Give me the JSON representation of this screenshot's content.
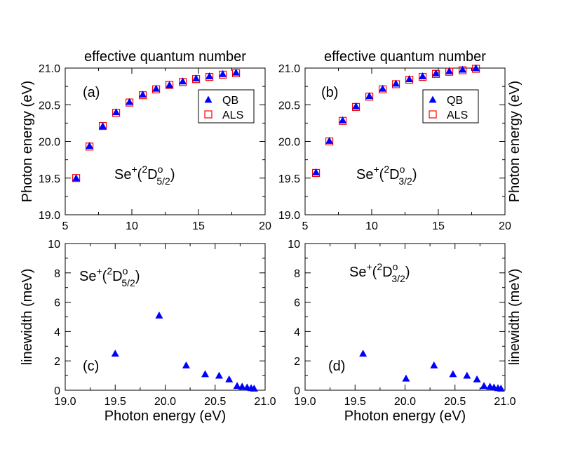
{
  "colors": {
    "qb": "#0000ff",
    "als": "#ff0000",
    "axis": "#000000"
  },
  "chart_data": [
    {
      "type": "scatter",
      "panel_label": "(a)",
      "title": "effective quantum number",
      "xlabel": "",
      "ylabel": "Photon  energy (eV)",
      "ylabel_side": "left",
      "xlim": [
        5,
        20
      ],
      "ylim": [
        19.0,
        21.0
      ],
      "xticks": [
        5,
        10,
        15,
        20
      ],
      "xminor": [
        7.5,
        12.5,
        17.5
      ],
      "yticks": [
        19.0,
        19.5,
        20.0,
        20.5,
        21.0
      ],
      "yminor": [
        19.25,
        19.75,
        20.25,
        20.75
      ],
      "species": {
        "base": "Se",
        "sup": "+",
        "open": "(",
        "mult": "2",
        "term": "D",
        "parity": "o",
        "j": "5/2",
        "close": ")"
      },
      "legend": [
        "QB",
        "ALS"
      ],
      "series": [
        {
          "name": "QB",
          "marker": "triangle",
          "x": [
            5.82,
            6.82,
            7.82,
            8.82,
            9.82,
            10.82,
            11.82,
            12.82,
            13.82,
            14.82,
            15.82,
            16.82,
            17.82
          ],
          "y": [
            19.5,
            19.94,
            20.21,
            20.4,
            20.54,
            20.64,
            20.72,
            20.77,
            20.82,
            20.86,
            20.89,
            20.92,
            20.94
          ]
        },
        {
          "name": "ALS",
          "marker": "square",
          "x": [
            5.82,
            6.82,
            7.82,
            8.82,
            9.82,
            10.82,
            11.82,
            12.82,
            13.82,
            14.82,
            15.82,
            16.82,
            17.82
          ],
          "y": [
            19.5,
            19.93,
            20.21,
            20.39,
            20.53,
            20.63,
            20.71,
            20.77,
            20.81,
            20.85,
            20.88,
            20.91,
            20.93
          ]
        }
      ]
    },
    {
      "type": "scatter",
      "panel_label": "(b)",
      "title": "effective quantum number",
      "xlabel": "",
      "ylabel": "Photon energy (eV)",
      "ylabel_side": "right",
      "xlim": [
        5,
        20
      ],
      "ylim": [
        19.0,
        21.0
      ],
      "xticks": [
        5,
        10,
        15,
        20
      ],
      "xminor": [
        7.5,
        12.5,
        17.5
      ],
      "yticks": [
        19.0,
        19.5,
        20.0,
        20.5,
        21.0
      ],
      "yminor": [
        19.25,
        19.75,
        20.25,
        20.75
      ],
      "species": {
        "base": "Se",
        "sup": "+",
        "open": "(",
        "mult": "2",
        "term": "D",
        "parity": "o",
        "j": "3/2",
        "close": ")"
      },
      "legend": [
        "QB",
        "ALS"
      ],
      "series": [
        {
          "name": "QB",
          "marker": "triangle",
          "x": [
            5.82,
            6.82,
            7.82,
            8.82,
            9.82,
            10.82,
            11.82,
            12.82,
            13.82,
            14.82,
            15.82,
            16.82,
            17.82
          ],
          "y": [
            19.58,
            20.01,
            20.29,
            20.48,
            20.62,
            20.72,
            20.79,
            20.85,
            20.89,
            20.93,
            20.96,
            20.98,
            21.0
          ]
        },
        {
          "name": "ALS",
          "marker": "square",
          "x": [
            5.82,
            6.82,
            7.82,
            8.82,
            9.82,
            10.82,
            11.82,
            12.82,
            13.82,
            14.82,
            15.82,
            16.82,
            17.82
          ],
          "y": [
            19.57,
            20.0,
            20.28,
            20.47,
            20.61,
            20.71,
            20.78,
            20.84,
            20.88,
            20.92,
            20.95,
            20.97,
            20.99
          ]
        }
      ]
    },
    {
      "type": "scatter",
      "panel_label": "(c)",
      "title": "",
      "xlabel": "Photon energy (eV)",
      "ylabel": "linewidth (meV)",
      "ylabel_side": "left",
      "xlim": [
        19,
        21
      ],
      "ylim": [
        0,
        10
      ],
      "xticks": [
        19,
        19.5,
        20,
        20.5,
        21
      ],
      "xminor": [
        19.25,
        19.75,
        20.25,
        20.75
      ],
      "yticks": [
        0,
        2,
        4,
        6,
        8,
        10
      ],
      "yminor": [
        1,
        3,
        5,
        7,
        9
      ],
      "species": {
        "base": "Se",
        "sup": "+",
        "open": "(",
        "mult": "2",
        "term": "D",
        "parity": "o",
        "j": "5/2",
        "close": ")"
      },
      "legend": [],
      "series": [
        {
          "name": "QB",
          "marker": "triangle",
          "x": [
            19.5,
            19.94,
            20.21,
            20.4,
            20.54,
            20.64,
            20.72,
            20.77,
            20.82,
            20.86,
            20.89
          ],
          "y": [
            2.5,
            5.1,
            1.7,
            1.1,
            1.0,
            0.75,
            0.3,
            0.25,
            0.2,
            0.15,
            0.12
          ]
        }
      ]
    },
    {
      "type": "scatter",
      "panel_label": "(d)",
      "title": "",
      "xlabel": "Photon energy (eV)",
      "ylabel": "linewidth (meV)",
      "ylabel_side": "right",
      "xlim": [
        19,
        21
      ],
      "ylim": [
        0,
        10
      ],
      "xticks": [
        19,
        19.5,
        20,
        20.5,
        21
      ],
      "xminor": [
        19.25,
        19.75,
        20.25,
        20.75
      ],
      "yticks": [
        0,
        2,
        4,
        6,
        8,
        10
      ],
      "yminor": [
        1,
        3,
        5,
        7,
        9
      ],
      "species": {
        "base": "Se",
        "sup": "+",
        "open": "(",
        "mult": "2",
        "term": "D",
        "parity": "o",
        "j": "3/2",
        "close": ")"
      },
      "legend": [],
      "series": [
        {
          "name": "QB",
          "marker": "triangle",
          "x": [
            19.58,
            20.01,
            20.29,
            20.48,
            20.62,
            20.72,
            20.79,
            20.85,
            20.89,
            20.93,
            20.96
          ],
          "y": [
            2.5,
            0.8,
            1.7,
            1.1,
            1.0,
            0.75,
            0.3,
            0.25,
            0.2,
            0.15,
            0.12
          ]
        }
      ]
    }
  ]
}
